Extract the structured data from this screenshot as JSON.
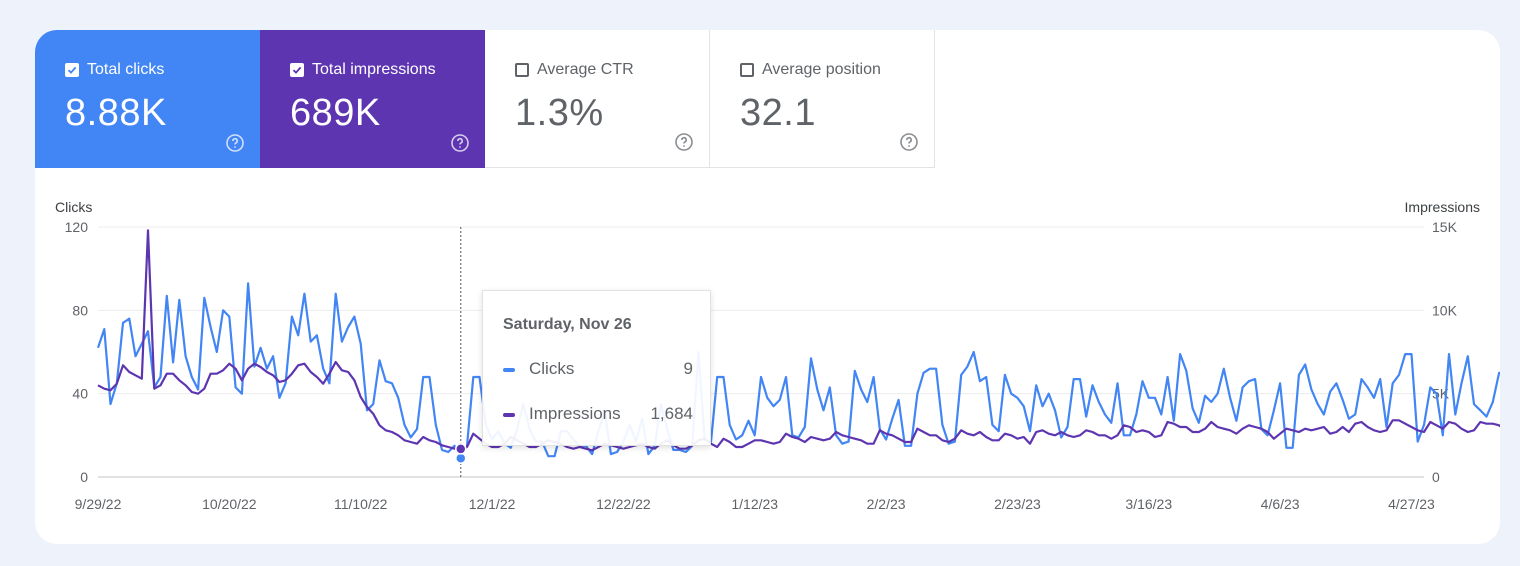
{
  "metrics": [
    {
      "label": "Total clicks",
      "value": "8.88K",
      "checked": true,
      "color": "#4285f4"
    },
    {
      "label": "Total impressions",
      "value": "689K",
      "checked": true,
      "color": "#5e35b1"
    },
    {
      "label": "Average CTR",
      "value": "1.3%",
      "checked": false
    },
    {
      "label": "Average position",
      "value": "32.1",
      "checked": false
    }
  ],
  "tooltip": {
    "date": "Saturday, Nov 26",
    "clicks_label": "Clicks",
    "clicks_value": "9",
    "impressions_label": "Impressions",
    "impressions_value": "1,684"
  },
  "chart_data": {
    "type": "line",
    "ylabel_left": "Clicks",
    "ylabel_right": "Impressions",
    "left_ticks": [
      "120",
      "80",
      "40",
      "0"
    ],
    "left_range": [
      0,
      120
    ],
    "right_ticks": [
      "15K",
      "10K",
      "5K",
      "0"
    ],
    "right_range": [
      0,
      15000
    ],
    "x_ticks": [
      "9/29/22",
      "10/20/22",
      "11/10/22",
      "12/1/22",
      "12/22/22",
      "1/12/23",
      "2/2/23",
      "2/23/23",
      "3/16/23",
      "4/6/23",
      "4/27/23"
    ],
    "x_start": "2022-09-29",
    "days": 213,
    "highlight_day": 58,
    "series": [
      {
        "name": "Clicks",
        "axis": "left",
        "color": "#4285f4",
        "values": [
          62,
          71,
          35,
          45,
          74,
          76,
          58,
          64,
          70,
          43,
          48,
          87,
          55,
          85,
          58,
          48,
          42,
          86,
          72,
          60,
          80,
          77,
          43,
          40,
          93,
          53,
          62,
          52,
          58,
          38,
          45,
          77,
          68,
          88,
          65,
          68,
          52,
          45,
          88,
          65,
          72,
          77,
          64,
          32,
          35,
          56,
          46,
          45,
          38,
          25,
          19,
          23,
          48,
          48,
          25,
          13,
          12,
          15,
          9,
          15,
          48,
          48,
          25,
          18,
          22,
          16,
          14,
          23,
          35,
          23,
          17,
          17,
          10,
          10,
          22,
          22,
          18,
          15,
          15,
          11,
          22,
          32,
          11,
          12,
          17,
          25,
          17,
          28,
          11,
          15,
          35,
          23,
          13,
          13,
          12,
          15,
          60,
          18,
          17,
          48,
          48,
          25,
          18,
          20,
          27,
          20,
          48,
          38,
          34,
          37,
          48,
          20,
          19,
          24,
          57,
          42,
          32,
          43,
          20,
          16,
          17,
          51,
          42,
          36,
          48,
          23,
          18,
          28,
          37,
          15,
          15,
          40,
          50,
          52,
          52,
          25,
          16,
          17,
          49,
          53,
          60,
          46,
          48,
          25,
          22,
          49,
          40,
          38,
          34,
          22,
          44,
          34,
          40,
          32,
          19,
          24,
          47,
          47,
          29,
          44,
          36,
          30,
          26,
          45,
          20,
          20,
          30,
          46,
          38,
          38,
          30,
          48,
          27,
          59,
          51,
          33,
          26,
          39,
          36,
          40,
          52,
          38,
          27,
          43,
          46,
          47,
          23,
          20,
          32,
          45,
          14,
          14,
          49,
          54,
          42,
          35,
          30,
          41,
          45,
          37,
          28,
          30,
          47,
          43,
          38,
          47,
          24,
          45,
          49,
          59,
          59,
          17,
          25,
          43,
          40,
          20,
          59,
          30,
          45,
          58,
          35,
          32,
          29,
          36,
          50,
          50,
          57,
          52,
          50,
          14,
          34
        ]
      },
      {
        "name": "Impressions",
        "axis": "right",
        "color": "#5e35b1",
        "values": [
          5500,
          5300,
          5200,
          5600,
          6700,
          6300,
          6100,
          5900,
          14800,
          5300,
          5500,
          6200,
          6200,
          5800,
          5500,
          5100,
          5000,
          5300,
          6200,
          6200,
          6400,
          6800,
          6500,
          5800,
          6500,
          6800,
          6600,
          6300,
          6100,
          5700,
          5800,
          6200,
          6700,
          6800,
          6300,
          6000,
          5600,
          6200,
          6900,
          6400,
          6300,
          5800,
          4800,
          4200,
          3800,
          3100,
          2800,
          2700,
          2500,
          2200,
          2100,
          2000,
          2400,
          2200,
          2100,
          1900,
          1800,
          1700,
          1684,
          1800,
          2600,
          2300,
          2000,
          1800,
          1800,
          2000,
          2400,
          2200,
          2000,
          1800,
          1800,
          2000,
          2200,
          2100,
          2000,
          1800,
          1700,
          1800,
          1700,
          1600,
          1800,
          2000,
          1900,
          1800,
          1700,
          1800,
          1900,
          2000,
          1800,
          1700,
          2000,
          2200,
          1900,
          1700,
          1700,
          1900,
          2200,
          2300,
          2000,
          1800,
          2300,
          2100,
          1800,
          1800,
          2000,
          2200,
          2200,
          2100,
          2000,
          2100,
          2600,
          2400,
          2300,
          2100,
          2400,
          2300,
          2200,
          2300,
          2700,
          2500,
          2400,
          2300,
          2200,
          2000,
          2000,
          2800,
          2600,
          2500,
          2300,
          2100,
          2100,
          2900,
          2700,
          2500,
          2500,
          2200,
          2100,
          2300,
          2800,
          2600,
          2500,
          2700,
          2400,
          2200,
          2200,
          2600,
          2500,
          2300,
          2400,
          2000,
          2700,
          2800,
          2600,
          2500,
          2700,
          2500,
          2400,
          2500,
          2800,
          2700,
          2500,
          2500,
          2300,
          2500,
          3100,
          3000,
          2700,
          2800,
          2700,
          2400,
          2500,
          3300,
          3200,
          3000,
          3000,
          2700,
          2700,
          2900,
          3300,
          3000,
          2900,
          2800,
          2600,
          2900,
          3100,
          3000,
          2900,
          2700,
          2300,
          2600,
          2900,
          2800,
          2700,
          2900,
          2800,
          2900,
          3000,
          2600,
          2700,
          3000,
          2700,
          3200,
          3300,
          3000,
          2800,
          2700,
          2800,
          3400,
          3400,
          3200,
          3000,
          2800,
          2700,
          3300,
          3100,
          2900,
          3300,
          3200,
          2900,
          2700,
          2800,
          3300,
          3200,
          3200,
          3100,
          2800,
          3200
        ]
      }
    ]
  }
}
